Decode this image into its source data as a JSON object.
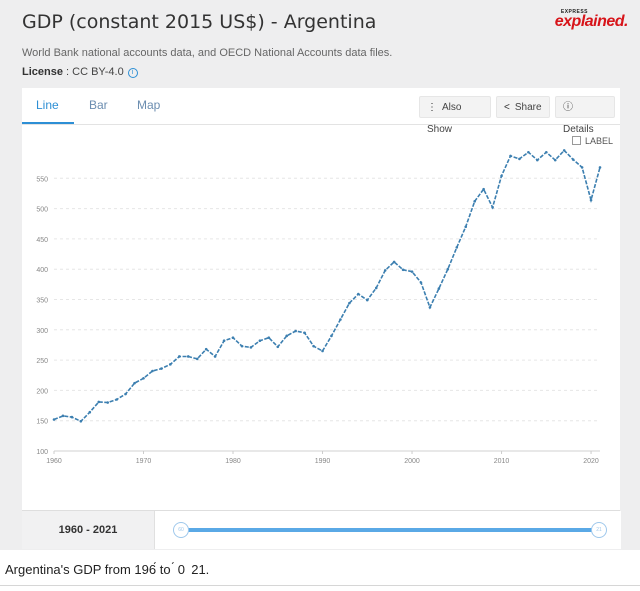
{
  "header": {
    "title": "GDP (constant 2015 US$) - Argentina",
    "brand_small": "EXPRESS",
    "brand_big": "explained.",
    "source": "World Bank national accounts data, and OECD National Accounts data files.",
    "license_label": "License",
    "license_value": " : CC BY-4.0",
    "info_glyph": "i"
  },
  "tabs": [
    {
      "label": "Line",
      "active": true
    },
    {
      "label": "Bar",
      "active": false
    },
    {
      "label": "Map",
      "active": false
    }
  ],
  "toolbar": {
    "also_show": "Also Show",
    "share": "Share",
    "details": "Details"
  },
  "label_toggle": "LABEL",
  "range": {
    "label": "1960 - 2021",
    "left_handle": "60",
    "right_handle": "21"
  },
  "caption": "Argentina's GDP from 196́ to ́ 0  21.",
  "chart_data": {
    "type": "line",
    "title": "",
    "xlabel": "",
    "ylabel": "",
    "xlim": [
      1960,
      2021
    ],
    "ylim": [
      100,
      600
    ],
    "xticks": [
      1960,
      1970,
      1980,
      1990,
      2000,
      2010,
      2020
    ],
    "yticks": [
      100,
      150,
      200,
      250,
      300,
      350,
      400,
      450,
      500,
      550
    ],
    "grid": true,
    "color": "#3c7fb0",
    "series": [
      {
        "x": [
          1960,
          1961,
          1962,
          1963,
          1964,
          1965,
          1966,
          1967,
          1968,
          1969,
          1970,
          1971,
          1972,
          1973,
          1974,
          1975,
          1976,
          1977,
          1978,
          1979,
          1980,
          1981,
          1982,
          1983,
          1984,
          1985,
          1986,
          1987,
          1988,
          1989,
          1990,
          1991,
          1992,
          1993,
          1994,
          1995,
          1996,
          1997,
          1998,
          1999,
          2000,
          2001,
          2002,
          2003,
          2004,
          2005,
          2006,
          2007,
          2008,
          2009,
          2010,
          2011,
          2012,
          2013,
          2014,
          2015,
          2016,
          2017,
          2018,
          2019,
          2020,
          2021
        ],
        "values": [
          152,
          158,
          156,
          149,
          164,
          181,
          180,
          185,
          194,
          212,
          220,
          232,
          236,
          243,
          256,
          256,
          252,
          268,
          256,
          282,
          287,
          273,
          271,
          282,
          287,
          272,
          290,
          298,
          295,
          273,
          265,
          290,
          317,
          344,
          359,
          349,
          369,
          398,
          412,
          399,
          396,
          378,
          337,
          368,
          400,
          436,
          470,
          512,
          532,
          502,
          554,
          587,
          582,
          593,
          580,
          593,
          580,
          596,
          581,
          568,
          514,
          568
        ]
      }
    ]
  }
}
